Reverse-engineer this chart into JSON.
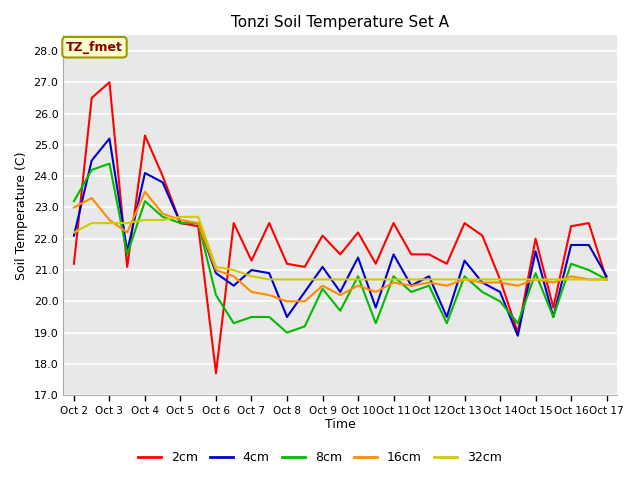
{
  "title": "Tonzi Soil Temperature Set A",
  "xlabel": "Time",
  "ylabel": "Soil Temperature (C)",
  "annotation_text": "TZ_fmet",
  "annotation_color": "#8B0000",
  "annotation_bg": "#FFFFCC",
  "annotation_edge": "#999900",
  "ylim": [
    17.0,
    28.5
  ],
  "yticks": [
    17.0,
    18.0,
    19.0,
    20.0,
    21.0,
    22.0,
    23.0,
    24.0,
    25.0,
    26.0,
    27.0,
    28.0
  ],
  "xtick_labels": [
    "Oct 2",
    "Oct 3",
    "Oct 4",
    "Oct 5",
    "Oct 6",
    "Oct 7",
    "Oct 8",
    "Oct 9",
    "Oct 10",
    "Oct 11",
    "Oct 12",
    "Oct 13",
    "Oct 14",
    "Oct 15",
    "Oct 16",
    "Oct 17"
  ],
  "series_colors": [
    "#FF0000",
    "#0000CC",
    "#00BB00",
    "#FF8C00",
    "#CCCC00"
  ],
  "series_labels": [
    "2cm",
    "4cm",
    "8cm",
    "16cm",
    "32cm"
  ],
  "plot_bg_color": "#E8E8E8",
  "fig_bg_color": "#FFFFFF",
  "grid_color": "#FFFFFF",
  "series_data": {
    "2cm": [
      21.2,
      26.5,
      27.0,
      21.1,
      25.3,
      24.0,
      22.5,
      22.4,
      17.7,
      22.5,
      21.3,
      22.5,
      21.2,
      21.1,
      22.1,
      21.5,
      22.2,
      21.2,
      22.5,
      21.5,
      21.5,
      21.2,
      22.5,
      22.1,
      20.7,
      19.0,
      22.0,
      19.8,
      22.4,
      22.5,
      20.7
    ],
    "4cm": [
      22.1,
      24.5,
      25.2,
      21.6,
      24.1,
      23.8,
      22.5,
      22.5,
      20.9,
      20.5,
      21.0,
      20.9,
      19.5,
      20.3,
      21.1,
      20.3,
      21.4,
      19.8,
      21.5,
      20.5,
      20.8,
      19.5,
      21.3,
      20.6,
      20.3,
      18.9,
      21.6,
      19.5,
      21.8,
      21.8,
      20.8
    ],
    "8cm": [
      23.2,
      24.2,
      24.4,
      21.5,
      23.2,
      22.7,
      22.5,
      22.5,
      20.2,
      19.3,
      19.5,
      19.5,
      19.0,
      19.2,
      20.4,
      19.7,
      20.8,
      19.3,
      20.8,
      20.3,
      20.5,
      19.3,
      20.8,
      20.3,
      20.0,
      19.3,
      20.9,
      19.5,
      21.2,
      21.0,
      20.7
    ],
    "16cm": [
      23.0,
      23.3,
      22.6,
      22.2,
      23.5,
      22.8,
      22.6,
      22.5,
      21.0,
      20.8,
      20.3,
      20.2,
      20.0,
      20.0,
      20.5,
      20.2,
      20.5,
      20.3,
      20.6,
      20.5,
      20.6,
      20.5,
      20.7,
      20.6,
      20.6,
      20.5,
      20.7,
      20.6,
      20.8,
      20.7,
      20.7
    ],
    "32cm": [
      22.2,
      22.5,
      22.5,
      22.5,
      22.6,
      22.6,
      22.7,
      22.7,
      21.1,
      21.0,
      20.8,
      20.7,
      20.7,
      20.7,
      20.7,
      20.7,
      20.7,
      20.7,
      20.7,
      20.7,
      20.7,
      20.7,
      20.7,
      20.7,
      20.7,
      20.7,
      20.7,
      20.7,
      20.7,
      20.7,
      20.7
    ]
  }
}
